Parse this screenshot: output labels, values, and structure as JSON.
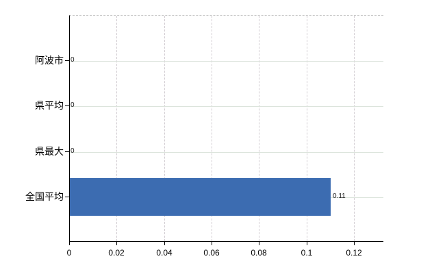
{
  "chart_data": {
    "type": "bar",
    "orientation": "horizontal",
    "title": "",
    "xlabel": "",
    "ylabel": "",
    "legend_position": "none",
    "grid": true,
    "categories": [
      "阿波市",
      "県平均",
      "県最大",
      "全国平均"
    ],
    "values": [
      0,
      0,
      0,
      0.11
    ],
    "value_labels": [
      "0",
      "0",
      "0",
      "0.11"
    ],
    "x_tick_values": [
      0,
      0.02,
      0.04,
      0.06,
      0.08,
      0.1,
      0.12
    ],
    "x_tick_labels": [
      "0",
      "0.02",
      "0.04",
      "0.06",
      "0.08",
      "0.1",
      "0.12"
    ],
    "xlim": [
      0,
      0.1325
    ],
    "colors": {
      "bar": "#3c6cb1",
      "vertical_gridline": "#d2cdd2",
      "horizontal_gridline": "#dce4dc",
      "top_border": "#c8c8c8",
      "axis": "#000000",
      "text": "#000000",
      "value_text": "#1a1a1a",
      "background": "#ffffff"
    }
  }
}
